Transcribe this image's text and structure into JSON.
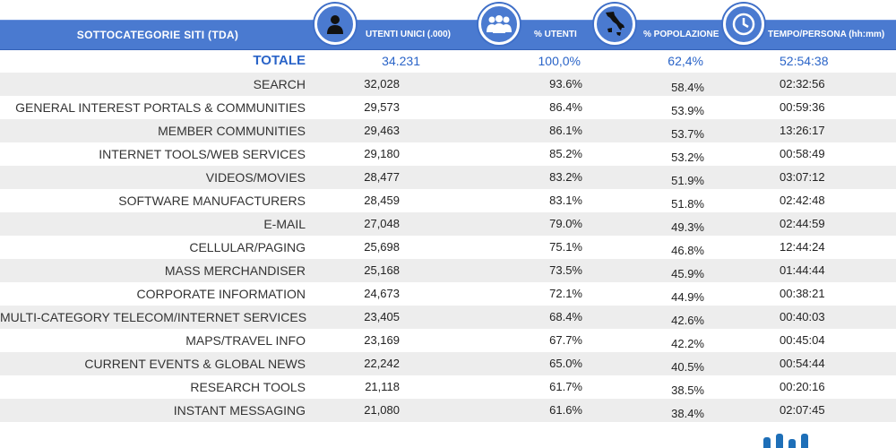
{
  "header": {
    "category": "SOTTOCATEGORIE SITI  (TDA)",
    "unique_users": "UTENTI UNICI (.000)",
    "pct_users": "% UTENTI",
    "pct_population": "% POPOLAZIONE",
    "time_per_person": "TEMPO/PERSONA (hh:mm)"
  },
  "icons": {
    "users": "person-icon",
    "pct_users": "group-icon",
    "population": "italy-map-icon",
    "time": "clock-icon"
  },
  "colors": {
    "header_bg": "#4a7ad0",
    "total_text": "#2a64c8",
    "row_shade": "#ededed"
  },
  "total": {
    "label": "TOTALE",
    "users": "34.231",
    "pct_users": "100,0%",
    "pct_pop": "62,4%",
    "time": "52:54:38"
  },
  "rows": [
    {
      "label": "SEARCH",
      "users": "32,028",
      "pct_users": "93.6%",
      "pct_pop": "58.4%",
      "time": "02:32:56"
    },
    {
      "label": "GENERAL INTEREST PORTALS & COMMUNITIES",
      "users": "29,573",
      "pct_users": "86.4%",
      "pct_pop": "53.9%",
      "time": "00:59:36"
    },
    {
      "label": "MEMBER COMMUNITIES",
      "users": "29,463",
      "pct_users": "86.1%",
      "pct_pop": "53.7%",
      "time": "13:26:17"
    },
    {
      "label": "INTERNET TOOLS/WEB SERVICES",
      "users": "29,180",
      "pct_users": "85.2%",
      "pct_pop": "53.2%",
      "time": "00:58:49"
    },
    {
      "label": "VIDEOS/MOVIES",
      "users": "28,477",
      "pct_users": "83.2%",
      "pct_pop": "51.9%",
      "time": "03:07:12"
    },
    {
      "label": "SOFTWARE MANUFACTURERS",
      "users": "28,459",
      "pct_users": "83.1%",
      "pct_pop": "51.8%",
      "time": "02:42:48"
    },
    {
      "label": "E-MAIL",
      "users": "27,048",
      "pct_users": "79.0%",
      "pct_pop": "49.3%",
      "time": "02:44:59"
    },
    {
      "label": "CELLULAR/PAGING",
      "users": "25,698",
      "pct_users": "75.1%",
      "pct_pop": "46.8%",
      "time": "12:44:24"
    },
    {
      "label": "MASS MERCHANDISER",
      "users": "25,168",
      "pct_users": "73.5%",
      "pct_pop": "45.9%",
      "time": "01:44:44"
    },
    {
      "label": "CORPORATE INFORMATION",
      "users": "24,673",
      "pct_users": "72.1%",
      "pct_pop": "44.9%",
      "time": "00:38:21"
    },
    {
      "label": "MULTI-CATEGORY TELECOM/INTERNET SERVICES",
      "users": "23,405",
      "pct_users": "68.4%",
      "pct_pop": "42.6%",
      "time": "00:40:03"
    },
    {
      "label": "MAPS/TRAVEL INFO",
      "users": "23,169",
      "pct_users": "67.7%",
      "pct_pop": "42.2%",
      "time": "00:45:04"
    },
    {
      "label": "CURRENT EVENTS & GLOBAL NEWS",
      "users": "22,242",
      "pct_users": "65.0%",
      "pct_pop": "40.5%",
      "time": "00:54:44"
    },
    {
      "label": "RESEARCH TOOLS",
      "users": "21,118",
      "pct_users": "61.7%",
      "pct_pop": "38.5%",
      "time": "00:20:16"
    },
    {
      "label": "INSTANT MESSAGING",
      "users": "21,080",
      "pct_users": "61.6%",
      "pct_pop": "38.4%",
      "time": "02:07:45"
    }
  ]
}
